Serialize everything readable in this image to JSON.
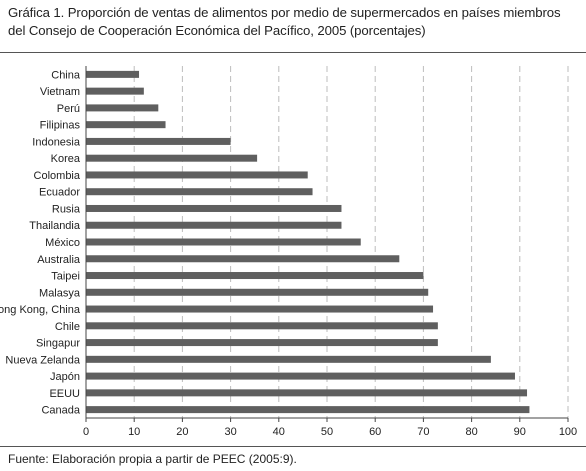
{
  "title": "Gráfica 1. Proporción de ventas de alimentos por medio de supermercados en países miembros del Consejo de Cooperación Económica del Pacífico, 2005 (porcentajes)",
  "source": "Fuente: Elaboración propia a partir de PEEC (2005:9).",
  "colors": {
    "bar": "#5f5f5f",
    "grid": "#bdbdbd",
    "axis": "#444444"
  },
  "chart_data": {
    "type": "bar",
    "orientation": "horizontal",
    "categories": [
      "China",
      "Vietnam",
      "Perú",
      "Filipinas",
      "Indonesia",
      "Korea",
      "Colombia",
      "Ecuador",
      "Rusia",
      "Thailandia",
      "México",
      "Australia",
      "Taipei",
      "Malasya",
      "Hong Kong, China",
      "Chile",
      "Singapur",
      "Nueva Zelanda",
      "Japón",
      "EEUU",
      "Canada"
    ],
    "values": [
      11,
      12,
      15,
      16.5,
      30,
      35.5,
      46,
      47,
      53,
      53,
      57,
      65,
      70,
      71,
      72,
      73,
      73,
      84,
      89,
      91.5,
      92
    ],
    "xlim": [
      0,
      100
    ],
    "xticks": [
      0,
      10,
      20,
      30,
      40,
      50,
      60,
      70,
      80,
      90,
      100
    ],
    "grid": "vertical dashed",
    "xlabel": "",
    "ylabel": ""
  }
}
